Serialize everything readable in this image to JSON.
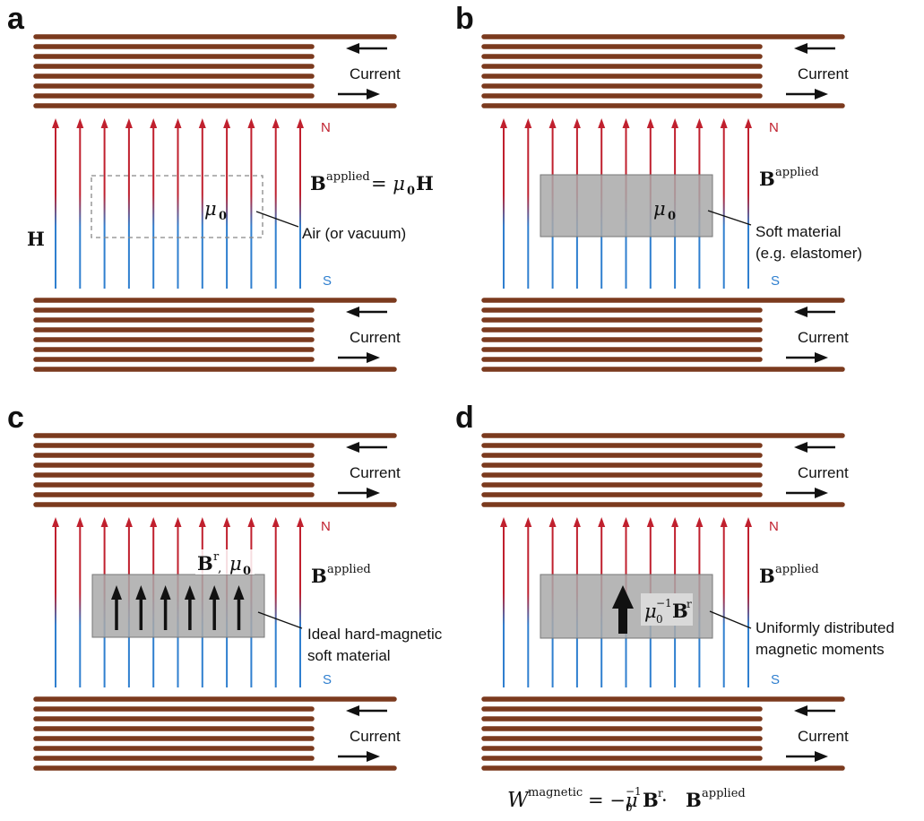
{
  "colors": {
    "coil": "#7b3a1e",
    "field_top": "#c0202e",
    "field_bottom": "#2f7fcf",
    "north_text": "#c0202e",
    "south_text": "#2f7fcf",
    "material_fill": "#a9a9a9",
    "arrow": "#111111"
  },
  "panels": [
    {
      "letter": "a",
      "current_top": "Current",
      "current_bottom": "Current",
      "north": "N",
      "south": "S",
      "field_symbol": "H",
      "material": "Air (or vacuum)",
      "material_line2": "",
      "mu_symbol": "μ",
      "mu_sub": "0",
      "field_eq_lhs": "B",
      "field_eq_sup": "applied",
      "field_eq_rhs": "= μ",
      "field_eq_sub": "0",
      "field_eq_tail": "H"
    },
    {
      "letter": "b",
      "current_top": "Current",
      "current_bottom": "Current",
      "north": "N",
      "south": "S",
      "material": "Soft material",
      "material_line2": "(e.g. elastomer)",
      "mu_symbol": "μ",
      "mu_sub": "0",
      "field_b": "B",
      "field_sup": "applied"
    },
    {
      "letter": "c",
      "current_top": "Current",
      "current_bottom": "Current",
      "north": "N",
      "south": "S",
      "material": "Ideal hard-magnetic",
      "material_line2": "soft material",
      "br_symbol": "B",
      "br_sup": "r",
      "br_sep": ",",
      "mu_symbol": "μ",
      "mu_sub": "0",
      "field_b": "B",
      "field_sup": "applied"
    },
    {
      "letter": "d",
      "current_top": "Current",
      "current_bottom": "Current",
      "north": "N",
      "south": "S",
      "material": "Uniformly distributed",
      "material_line2": "magnetic moments",
      "moment_mu": "μ",
      "moment_sub": "0",
      "moment_sup": "−1",
      "moment_b": "B",
      "moment_b_sup": "r",
      "field_b": "B",
      "field_sup": "applied"
    }
  ],
  "energy": {
    "w": "W",
    "w_sup": "magnetic",
    "eq": "= −μ",
    "mu_sub": "0",
    "mu_sup": "−1",
    "br": "B",
    "br_sup": "r",
    "dot": " · ",
    "b": "B",
    "b_sup": "applied"
  }
}
